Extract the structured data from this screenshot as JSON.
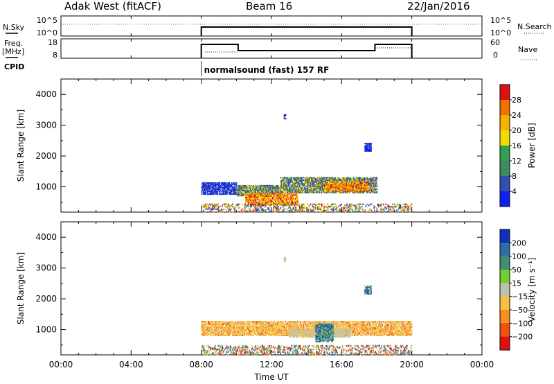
{
  "header": {
    "station": "Adak West (fitACF)",
    "beam": "Beam 16",
    "date": "22/Jan/2016"
  },
  "aux_panels": {
    "nsky_label": "N.Sky",
    "nsky_ticks": [
      "10^5",
      "10^0"
    ],
    "nsearch_label": "N.Search",
    "nsearch_ticks": [
      "10^5",
      "10^0"
    ],
    "freq_label": "Freq.",
    "freq_unit": "[MHz]",
    "freq_ticks": [
      "18",
      "8"
    ],
    "nave_label": "Nave",
    "nave_ticks": [
      "60",
      "0"
    ],
    "cpid_label": "CPID",
    "cpid_text": "normalsound (fast) 157 RF"
  },
  "chart_data": [
    {
      "type": "heatmap",
      "name": "power",
      "ylabel": "Slant Range [km]",
      "xlim": [
        0,
        24
      ],
      "ylim": [
        180,
        4500
      ],
      "yticks": [
        1000,
        2000,
        3000,
        4000
      ],
      "colorbar": {
        "label": "Power [dB]",
        "ticks": [
          "28",
          "24",
          "20",
          "16",
          "12",
          "8",
          "4"
        ],
        "colors": [
          "#e01010",
          "#f07000",
          "#f8b000",
          "#f0dc00",
          "#30a050",
          "#408860",
          "#3050b0",
          "#1020f0"
        ]
      },
      "echo_regions": [
        {
          "t_start": 8.0,
          "t_end": 10.0,
          "r_min": 750,
          "r_max": 1150,
          "level": "low"
        },
        {
          "t_start": 10.0,
          "t_end": 12.5,
          "r_min": 700,
          "r_max": 1050,
          "level": "mixed"
        },
        {
          "t_start": 12.5,
          "t_end": 18.0,
          "r_min": 800,
          "r_max": 1300,
          "level": "mixed"
        },
        {
          "t_start": 15.0,
          "t_end": 17.5,
          "r_min": 850,
          "r_max": 1150,
          "level": "high"
        },
        {
          "t_start": 10.5,
          "t_end": 13.5,
          "r_min": 400,
          "r_max": 800,
          "level": "high"
        },
        {
          "t_start": 8.0,
          "t_end": 20.0,
          "r_min": 180,
          "r_max": 450,
          "level": "scattered"
        },
        {
          "t_start": 17.3,
          "t_end": 17.7,
          "r_min": 2150,
          "r_max": 2400,
          "level": "low"
        },
        {
          "t_start": 12.7,
          "t_end": 12.8,
          "r_min": 3200,
          "r_max": 3350,
          "level": "low"
        }
      ]
    },
    {
      "type": "heatmap",
      "name": "velocity",
      "ylabel": "Slant Range [km]",
      "xlabel": "Time UT",
      "xlim": [
        0,
        24
      ],
      "ylim": [
        180,
        4500
      ],
      "yticks": [
        1000,
        2000,
        3000,
        4000
      ],
      "xticks": [
        "00:00",
        "04:00",
        "08:00",
        "12:00",
        "16:00",
        "20:00",
        "00:00"
      ],
      "colorbar": {
        "label": "Velocity [m s⁻¹]",
        "ticks": [
          "200",
          "100",
          "50",
          "15",
          "−15",
          "−50",
          "−100",
          "−200"
        ],
        "colors": [
          "#1030c0",
          "#2e6ea8",
          "#3f8f70",
          "#70d030",
          "#c0c0b0",
          "#f8c040",
          "#f89020",
          "#f05010",
          "#e01010"
        ]
      },
      "echo_regions": [
        {
          "t_start": 8.0,
          "t_end": 20.0,
          "r_min": 800,
          "r_max": 1250,
          "velocity_sign": "negative"
        },
        {
          "t_start": 13.0,
          "t_end": 16.5,
          "r_min": 750,
          "r_max": 1000,
          "velocity_sign": "near-zero"
        },
        {
          "t_start": 14.5,
          "t_end": 15.5,
          "r_min": 600,
          "r_max": 1200,
          "velocity_sign": "positive"
        },
        {
          "t_start": 8.0,
          "t_end": 20.0,
          "r_min": 180,
          "r_max": 500,
          "velocity_sign": "scattered"
        },
        {
          "t_start": 17.3,
          "t_end": 17.7,
          "r_min": 2150,
          "r_max": 2400,
          "velocity_sign": "positive"
        },
        {
          "t_start": 12.7,
          "t_end": 12.8,
          "r_min": 3200,
          "r_max": 3350,
          "velocity_sign": "near-zero"
        }
      ]
    }
  ]
}
